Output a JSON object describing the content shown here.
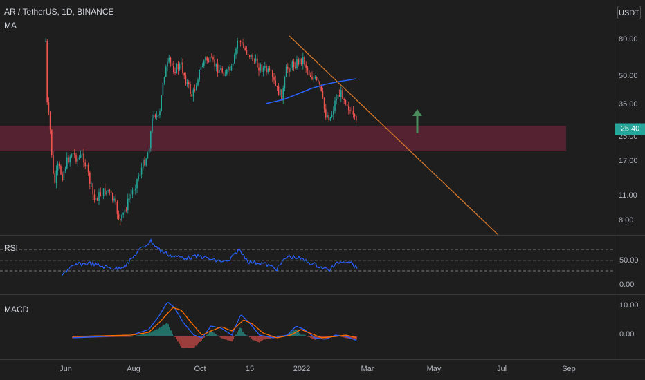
{
  "header": {
    "symbol_line": "AR / TetherUS, 1D, BINANCE",
    "indicator_ma": "MA"
  },
  "currency_button": "USDT",
  "price_axis": {
    "ticks": [
      "80.00",
      "50.00",
      "35.00",
      "25.00",
      "17.00",
      "11.00",
      "8.00"
    ],
    "current_price": "25.40",
    "current_price_color": "#26a69a"
  },
  "rsi_panel": {
    "label": "RSI",
    "ticks": [
      "50.00",
      "0.00"
    ]
  },
  "macd_panel": {
    "label": "MACD",
    "ticks": [
      "10.00",
      "0.00"
    ]
  },
  "time_axis": {
    "labels": [
      "Jun",
      "Aug",
      "Oct",
      "15",
      "2022",
      "Mar",
      "May",
      "Jul",
      "Sep"
    ]
  },
  "colors": {
    "up_candle": "#26a69a",
    "down_candle": "#ef5350",
    "support_zone": "#5a2232",
    "trendline": "#d2762a",
    "ma_line": "#2962ff",
    "rsi_line": "#2962ff",
    "macd_line": "#2962ff",
    "signal_line": "#ff6d00",
    "arrow": "#4a8c5c"
  },
  "icons": {
    "up_arrow": "arrow-up-icon"
  }
}
